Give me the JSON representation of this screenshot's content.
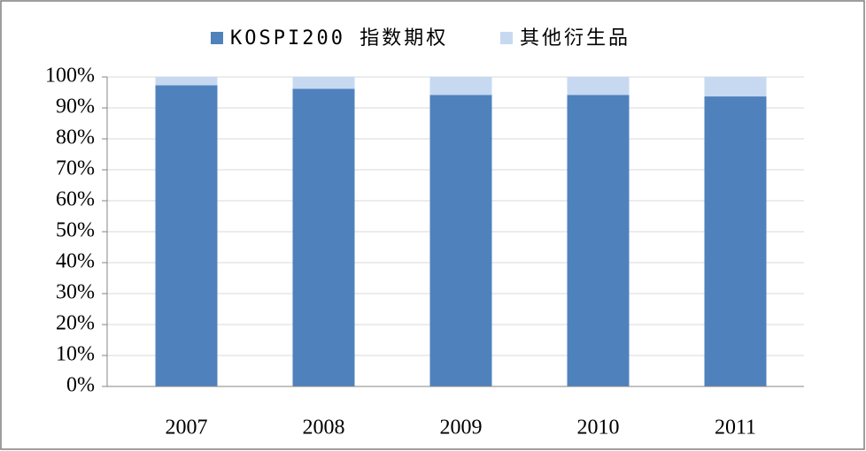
{
  "chart_data": {
    "type": "stacked-bar",
    "categories": [
      "2007",
      "2008",
      "2009",
      "2010",
      "2011"
    ],
    "series": [
      {
        "name": "KOSPI200 指数期权",
        "color": "#4f81bd",
        "values": [
          97.3,
          96.2,
          94.2,
          94.2,
          93.7
        ]
      },
      {
        "name": "其他衍生品",
        "color": "#c6d9f1",
        "values": [
          2.7,
          3.8,
          5.8,
          5.8,
          6.3
        ]
      }
    ],
    "ylim": [
      0,
      100
    ],
    "yticks": [
      {
        "value": 0,
        "label": "0%"
      },
      {
        "value": 10,
        "label": "10%"
      },
      {
        "value": 20,
        "label": "20%"
      },
      {
        "value": 30,
        "label": "30%"
      },
      {
        "value": 40,
        "label": "40%"
      },
      {
        "value": 50,
        "label": "50%"
      },
      {
        "value": 60,
        "label": "60%"
      },
      {
        "value": 70,
        "label": "70%"
      },
      {
        "value": 80,
        "label": "80%"
      },
      {
        "value": 90,
        "label": "90%"
      },
      {
        "value": 100,
        "label": "100%"
      }
    ],
    "grid": true,
    "legend": "top"
  }
}
